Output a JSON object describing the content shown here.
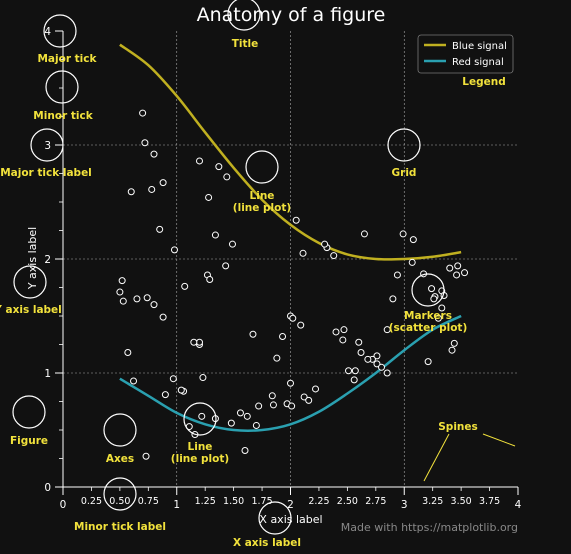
{
  "chart_data": {
    "type": "line",
    "title": "Anatomy of a figure",
    "xlabel": "X axis label",
    "ylabel": "Y axis label",
    "xlim": [
      0,
      4
    ],
    "ylim": [
      0,
      4
    ],
    "grid": true,
    "legend_position": "top-right",
    "x_major_ticks": [
      "0",
      "1",
      "2",
      "3",
      "4"
    ],
    "x_minor_ticks": [
      "0.25",
      "0.50",
      "0.75",
      "1.25",
      "1.50",
      "1.75",
      "2.25",
      "2.50",
      "2.75",
      "3.25",
      "3.50",
      "3.75"
    ],
    "y_major_ticks": [
      "0",
      "1",
      "2",
      "3",
      "4"
    ],
    "series": [
      {
        "name": "Blue signal",
        "color": "#C0B020",
        "x": [
          0.5,
          0.75,
          1.0,
          1.25,
          1.5,
          1.75,
          2.0,
          2.25,
          2.5,
          2.75,
          3.0,
          3.25,
          3.5
        ],
        "y": [
          3.88,
          3.7,
          3.43,
          3.11,
          2.8,
          2.52,
          2.3,
          2.14,
          2.04,
          2.0,
          2.0,
          2.02,
          2.06
        ]
      },
      {
        "name": "Red signal",
        "color": "#2AA0B0",
        "x": [
          0.5,
          0.75,
          1.0,
          1.25,
          1.5,
          1.75,
          2.0,
          2.25,
          2.5,
          2.75,
          3.0,
          3.25,
          3.5
        ],
        "y": [
          0.95,
          0.8,
          0.65,
          0.55,
          0.5,
          0.5,
          0.55,
          0.66,
          0.82,
          1.0,
          1.2,
          1.38,
          1.5
        ]
      }
    ],
    "scatter": {
      "name": "Markers",
      "x": [
        0.7,
        0.72,
        0.8,
        0.88,
        0.85,
        1.2,
        1.37,
        1.44,
        1.28,
        0.6,
        2.05,
        2.11,
        2.38,
        2.32,
        2.3,
        2.65,
        2.99,
        3.08,
        3.17,
        0.52,
        0.5,
        0.53,
        0.98,
        1.34,
        1.49,
        1.43,
        1.27,
        1.29,
        1.07,
        0.65,
        0.74,
        0.8,
        2.0,
        2.02,
        3.3,
        3.33,
        3.27,
        1.67,
        1.93,
        2.09,
        2.0,
        1.85,
        1.2,
        2.51,
        3.21,
        3.42,
        3.44,
        1.2,
        0.57,
        0.88,
        0.62,
        0.9,
        1.22,
        1.34,
        1.11,
        1.16,
        1.6,
        0.73,
        1.97,
        1.7,
        1.62,
        3.53,
        3.46,
        3.4,
        3.47,
        2.46,
        2.6,
        2.62,
        2.76,
        2.76,
        2.57,
        2.56,
        2.94,
        3.07,
        3.24,
        3.33,
        3.35,
        3.26,
        2.85,
        1.88,
        0.78,
        0.97,
        1.06,
        1.04,
        1.23,
        1.15,
        1.84,
        1.72,
        1.56,
        1.48,
        2.01,
        2.12,
        2.16,
        2.22,
        2.4,
        2.47,
        2.72,
        2.9,
        2.68,
        2.8,
        2.85
      ],
      "y": [
        3.28,
        3.02,
        2.92,
        2.67,
        2.26,
        2.86,
        2.81,
        2.72,
        2.54,
        2.59,
        2.34,
        2.05,
        2.03,
        2.1,
        2.13,
        2.22,
        2.22,
        2.17,
        1.87,
        1.81,
        1.71,
        1.63,
        2.08,
        2.21,
        2.13,
        1.94,
        1.86,
        1.82,
        1.76,
        1.65,
        1.66,
        1.6,
        1.5,
        1.48,
        1.48,
        1.57,
        1.67,
        1.34,
        1.32,
        1.42,
        0.91,
        0.72,
        1.25,
        1.02,
        1.1,
        1.2,
        1.26,
        1.27,
        1.18,
        1.49,
        0.93,
        0.81,
        0.62,
        0.6,
        0.53,
        0.46,
        0.32,
        0.27,
        0.73,
        0.54,
        0.62,
        1.88,
        1.86,
        1.92,
        1.94,
        1.29,
        1.27,
        1.18,
        1.15,
        1.08,
        1.02,
        0.94,
        1.86,
        1.97,
        1.74,
        1.72,
        1.68,
        1.65,
        1.38,
        1.13,
        2.61,
        0.95,
        0.84,
        0.85,
        0.96,
        1.27,
        0.8,
        0.71,
        0.65,
        0.56,
        0.71,
        0.79,
        0.76,
        0.86,
        1.36,
        1.38,
        1.12,
        1.65,
        1.12,
        1.05,
        1.0
      ]
    },
    "annotations": [
      "Major tick",
      "Minor tick",
      "Major tick label",
      "Y axis label",
      "Figure",
      "Axes",
      "Line\n(line plot)",
      "Line\n(line plot)",
      "Grid",
      "Markers\n(scatter plot)",
      "Legend",
      "Spines",
      "Title",
      "Minor tick label",
      "X axis label"
    ],
    "credit": "Made with https://matplotlib.org"
  },
  "colors": {
    "background": "#111111",
    "foreground": "#FFFFFF",
    "annotation": "#F2E23C",
    "grid": "#AAAAAA"
  }
}
